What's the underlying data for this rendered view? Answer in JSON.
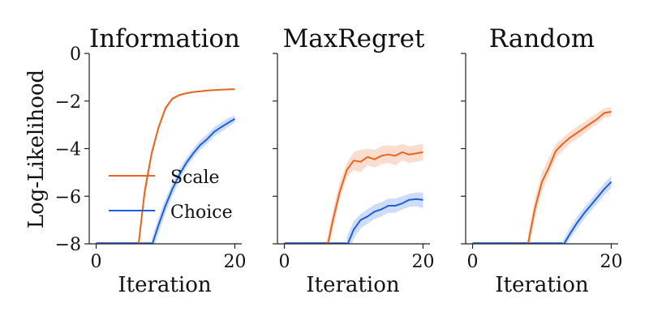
{
  "figure": {
    "ylabel": "Log-Likelihood",
    "legend": {
      "placement": "left-center of first panel"
    },
    "colors": {
      "Scale": "#e8651f",
      "Choice": "#1d5fdb"
    }
  },
  "chart_data": [
    {
      "type": "line",
      "title": "Information",
      "xlabel": "Iteration",
      "ylabel": "Log-Likelihood",
      "xlim": [
        -1,
        21
      ],
      "ylim": [
        -8,
        0
      ],
      "xticks": [
        0,
        20
      ],
      "xtick_labels": [
        "0",
        "20"
      ],
      "yticks": [
        0,
        -2,
        -4,
        -6,
        -8
      ],
      "ytick_labels": [
        "0",
        "−2",
        "−4",
        "−6",
        "−8"
      ],
      "grid": false,
      "legend": true,
      "series": [
        {
          "name": "Scale",
          "color": "#e8651f",
          "x": [
            6,
            7,
            8,
            9,
            10,
            11,
            12,
            13,
            14,
            15,
            16,
            17,
            18,
            19,
            20
          ],
          "y": [
            -8.3,
            -5.8,
            -4.2,
            -3.1,
            -2.3,
            -1.9,
            -1.75,
            -1.67,
            -1.62,
            -1.59,
            -1.56,
            -1.54,
            -1.52,
            -1.51,
            -1.5
          ],
          "lower": [
            -8.5,
            -6.1,
            -4.4,
            -3.2,
            -2.4,
            -1.95,
            -1.8,
            -1.7,
            -1.65,
            -1.62,
            -1.59,
            -1.57,
            -1.55,
            -1.54,
            -1.53
          ],
          "upper": [
            -8.1,
            -5.5,
            -4.0,
            -3.0,
            -2.2,
            -1.85,
            -1.7,
            -1.64,
            -1.59,
            -1.56,
            -1.53,
            -1.51,
            -1.49,
            -1.48,
            -1.47
          ]
        },
        {
          "name": "Choice",
          "color": "#1d5fdb",
          "x": [
            8,
            9,
            10,
            11,
            12,
            13,
            14,
            15,
            16,
            17,
            18,
            19,
            20
          ],
          "y": [
            -8.1,
            -7.2,
            -6.4,
            -5.7,
            -5.1,
            -4.6,
            -4.2,
            -3.85,
            -3.6,
            -3.3,
            -3.1,
            -2.92,
            -2.75
          ],
          "lower": [
            -8.5,
            -7.55,
            -6.7,
            -6.0,
            -5.35,
            -4.8,
            -4.4,
            -4.05,
            -3.8,
            -3.5,
            -3.3,
            -3.1,
            -2.9
          ],
          "upper": [
            -7.8,
            -6.9,
            -6.1,
            -5.45,
            -4.85,
            -4.4,
            -4.0,
            -3.65,
            -3.4,
            -3.1,
            -2.9,
            -2.72,
            -2.6
          ]
        }
      ]
    },
    {
      "type": "line",
      "title": "MaxRegret",
      "xlabel": "Iteration",
      "xlim": [
        -1,
        21
      ],
      "ylim": [
        -8,
        0
      ],
      "xticks": [
        0,
        20
      ],
      "xtick_labels": [
        "0",
        "20"
      ],
      "yticks": [
        0,
        -2,
        -4,
        -6,
        -8
      ],
      "grid": false,
      "legend": false,
      "series": [
        {
          "name": "Scale",
          "color": "#e8651f",
          "x": [
            6,
            7,
            8,
            9,
            10,
            11,
            12,
            13,
            14,
            15,
            16,
            17,
            18,
            19,
            20
          ],
          "y": [
            -8.4,
            -7.0,
            -5.8,
            -4.9,
            -4.5,
            -4.55,
            -4.35,
            -4.45,
            -4.3,
            -4.25,
            -4.3,
            -4.15,
            -4.25,
            -4.2,
            -4.15
          ],
          "lower": [
            -8.8,
            -7.4,
            -6.1,
            -5.2,
            -4.9,
            -5.0,
            -4.7,
            -4.8,
            -4.65,
            -4.6,
            -4.7,
            -4.5,
            -4.6,
            -4.55,
            -4.5
          ],
          "upper": [
            -8.0,
            -6.6,
            -5.4,
            -4.6,
            -4.15,
            -4.05,
            -4.0,
            -4.05,
            -3.9,
            -3.85,
            -3.9,
            -3.8,
            -3.9,
            -3.85,
            -3.8
          ]
        },
        {
          "name": "Choice",
          "color": "#1d5fdb",
          "x": [
            9,
            10,
            11,
            12,
            13,
            14,
            15,
            16,
            17,
            18,
            19,
            20
          ],
          "y": [
            -8.1,
            -7.4,
            -7.0,
            -6.85,
            -6.65,
            -6.55,
            -6.4,
            -6.4,
            -6.3,
            -6.15,
            -6.12,
            -6.15
          ],
          "lower": [
            -8.6,
            -7.8,
            -7.35,
            -7.15,
            -6.95,
            -6.85,
            -6.7,
            -6.7,
            -6.55,
            -6.45,
            -6.42,
            -6.5
          ],
          "upper": [
            -7.7,
            -7.05,
            -6.75,
            -6.55,
            -6.35,
            -6.25,
            -6.1,
            -6.1,
            -6.0,
            -5.9,
            -5.85,
            -5.85
          ]
        }
      ]
    },
    {
      "type": "line",
      "title": "Random",
      "xlabel": "Iteration",
      "xlim": [
        -1,
        21
      ],
      "ylim": [
        -8,
        0
      ],
      "xticks": [
        0,
        20
      ],
      "xtick_labels": [
        "0",
        "20"
      ],
      "yticks": [
        0,
        -2,
        -4,
        -6,
        -8
      ],
      "grid": false,
      "legend": false,
      "series": [
        {
          "name": "Scale",
          "color": "#e8651f",
          "x": [
            8,
            9,
            10,
            11,
            12,
            13,
            14,
            15,
            16,
            17,
            18,
            19,
            20
          ],
          "y": [
            -8.0,
            -6.5,
            -5.4,
            -4.8,
            -4.1,
            -3.8,
            -3.55,
            -3.35,
            -3.15,
            -2.95,
            -2.75,
            -2.5,
            -2.45
          ],
          "lower": [
            -8.4,
            -6.9,
            -5.8,
            -5.1,
            -4.4,
            -4.1,
            -3.8,
            -3.6,
            -3.4,
            -3.15,
            -2.95,
            -2.7,
            -2.65
          ],
          "upper": [
            -7.6,
            -6.1,
            -5.0,
            -4.4,
            -3.8,
            -3.55,
            -3.3,
            -3.1,
            -2.9,
            -2.7,
            -2.5,
            -2.3,
            -2.25
          ]
        },
        {
          "name": "Choice",
          "color": "#1d5fdb",
          "x": [
            13,
            14,
            15,
            16,
            17,
            18,
            19,
            20
          ],
          "y": [
            -8.1,
            -7.6,
            -7.15,
            -6.75,
            -6.4,
            -6.05,
            -5.7,
            -5.4
          ],
          "lower": [
            -8.3,
            -7.8,
            -7.4,
            -7.0,
            -6.65,
            -6.3,
            -5.95,
            -5.65
          ],
          "upper": [
            -7.9,
            -7.35,
            -6.9,
            -6.5,
            -6.15,
            -5.8,
            -5.45,
            -5.15
          ]
        }
      ]
    }
  ]
}
